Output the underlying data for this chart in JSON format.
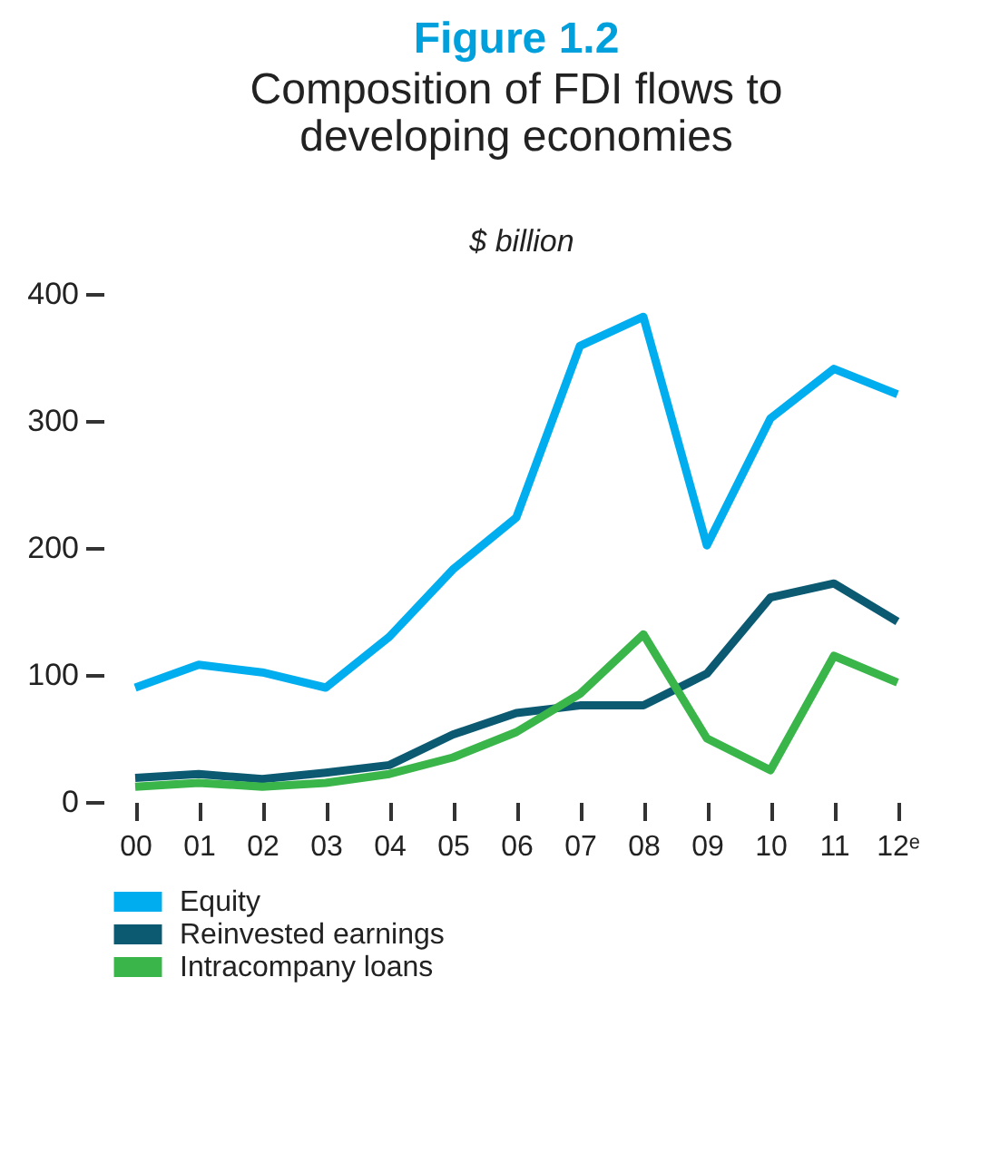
{
  "chart_data": {
    "type": "line",
    "title": "Figure 1.2",
    "subtitle": "Composition of FDI flows to developing economies",
    "ylabel": "$ billion",
    "categories": [
      "00",
      "01",
      "02",
      "03",
      "04",
      "05",
      "06",
      "07",
      "08",
      "09",
      "10",
      "11",
      "12ᵉ"
    ],
    "series": [
      {
        "name": "Equity",
        "color": "#00aeef",
        "values": [
          90,
          108,
          102,
          90,
          130,
          183,
          224,
          359,
          382,
          202,
          302,
          341,
          321
        ]
      },
      {
        "name": "Reinvested earnings",
        "color": "#0b5a72",
        "values": [
          19,
          22,
          18,
          23,
          29,
          53,
          70,
          76,
          76,
          101,
          161,
          172,
          142
        ]
      },
      {
        "name": "Intracompany loans",
        "color": "#39b54a",
        "values": [
          12,
          15,
          12,
          15,
          22,
          35,
          55,
          85,
          132,
          50,
          25,
          115,
          94
        ]
      }
    ],
    "ylim": [
      0,
      400
    ],
    "yticks": [
      0,
      100,
      200,
      300,
      400
    ],
    "grid": false,
    "legend": "bottom left",
    "line_style": "solid"
  }
}
